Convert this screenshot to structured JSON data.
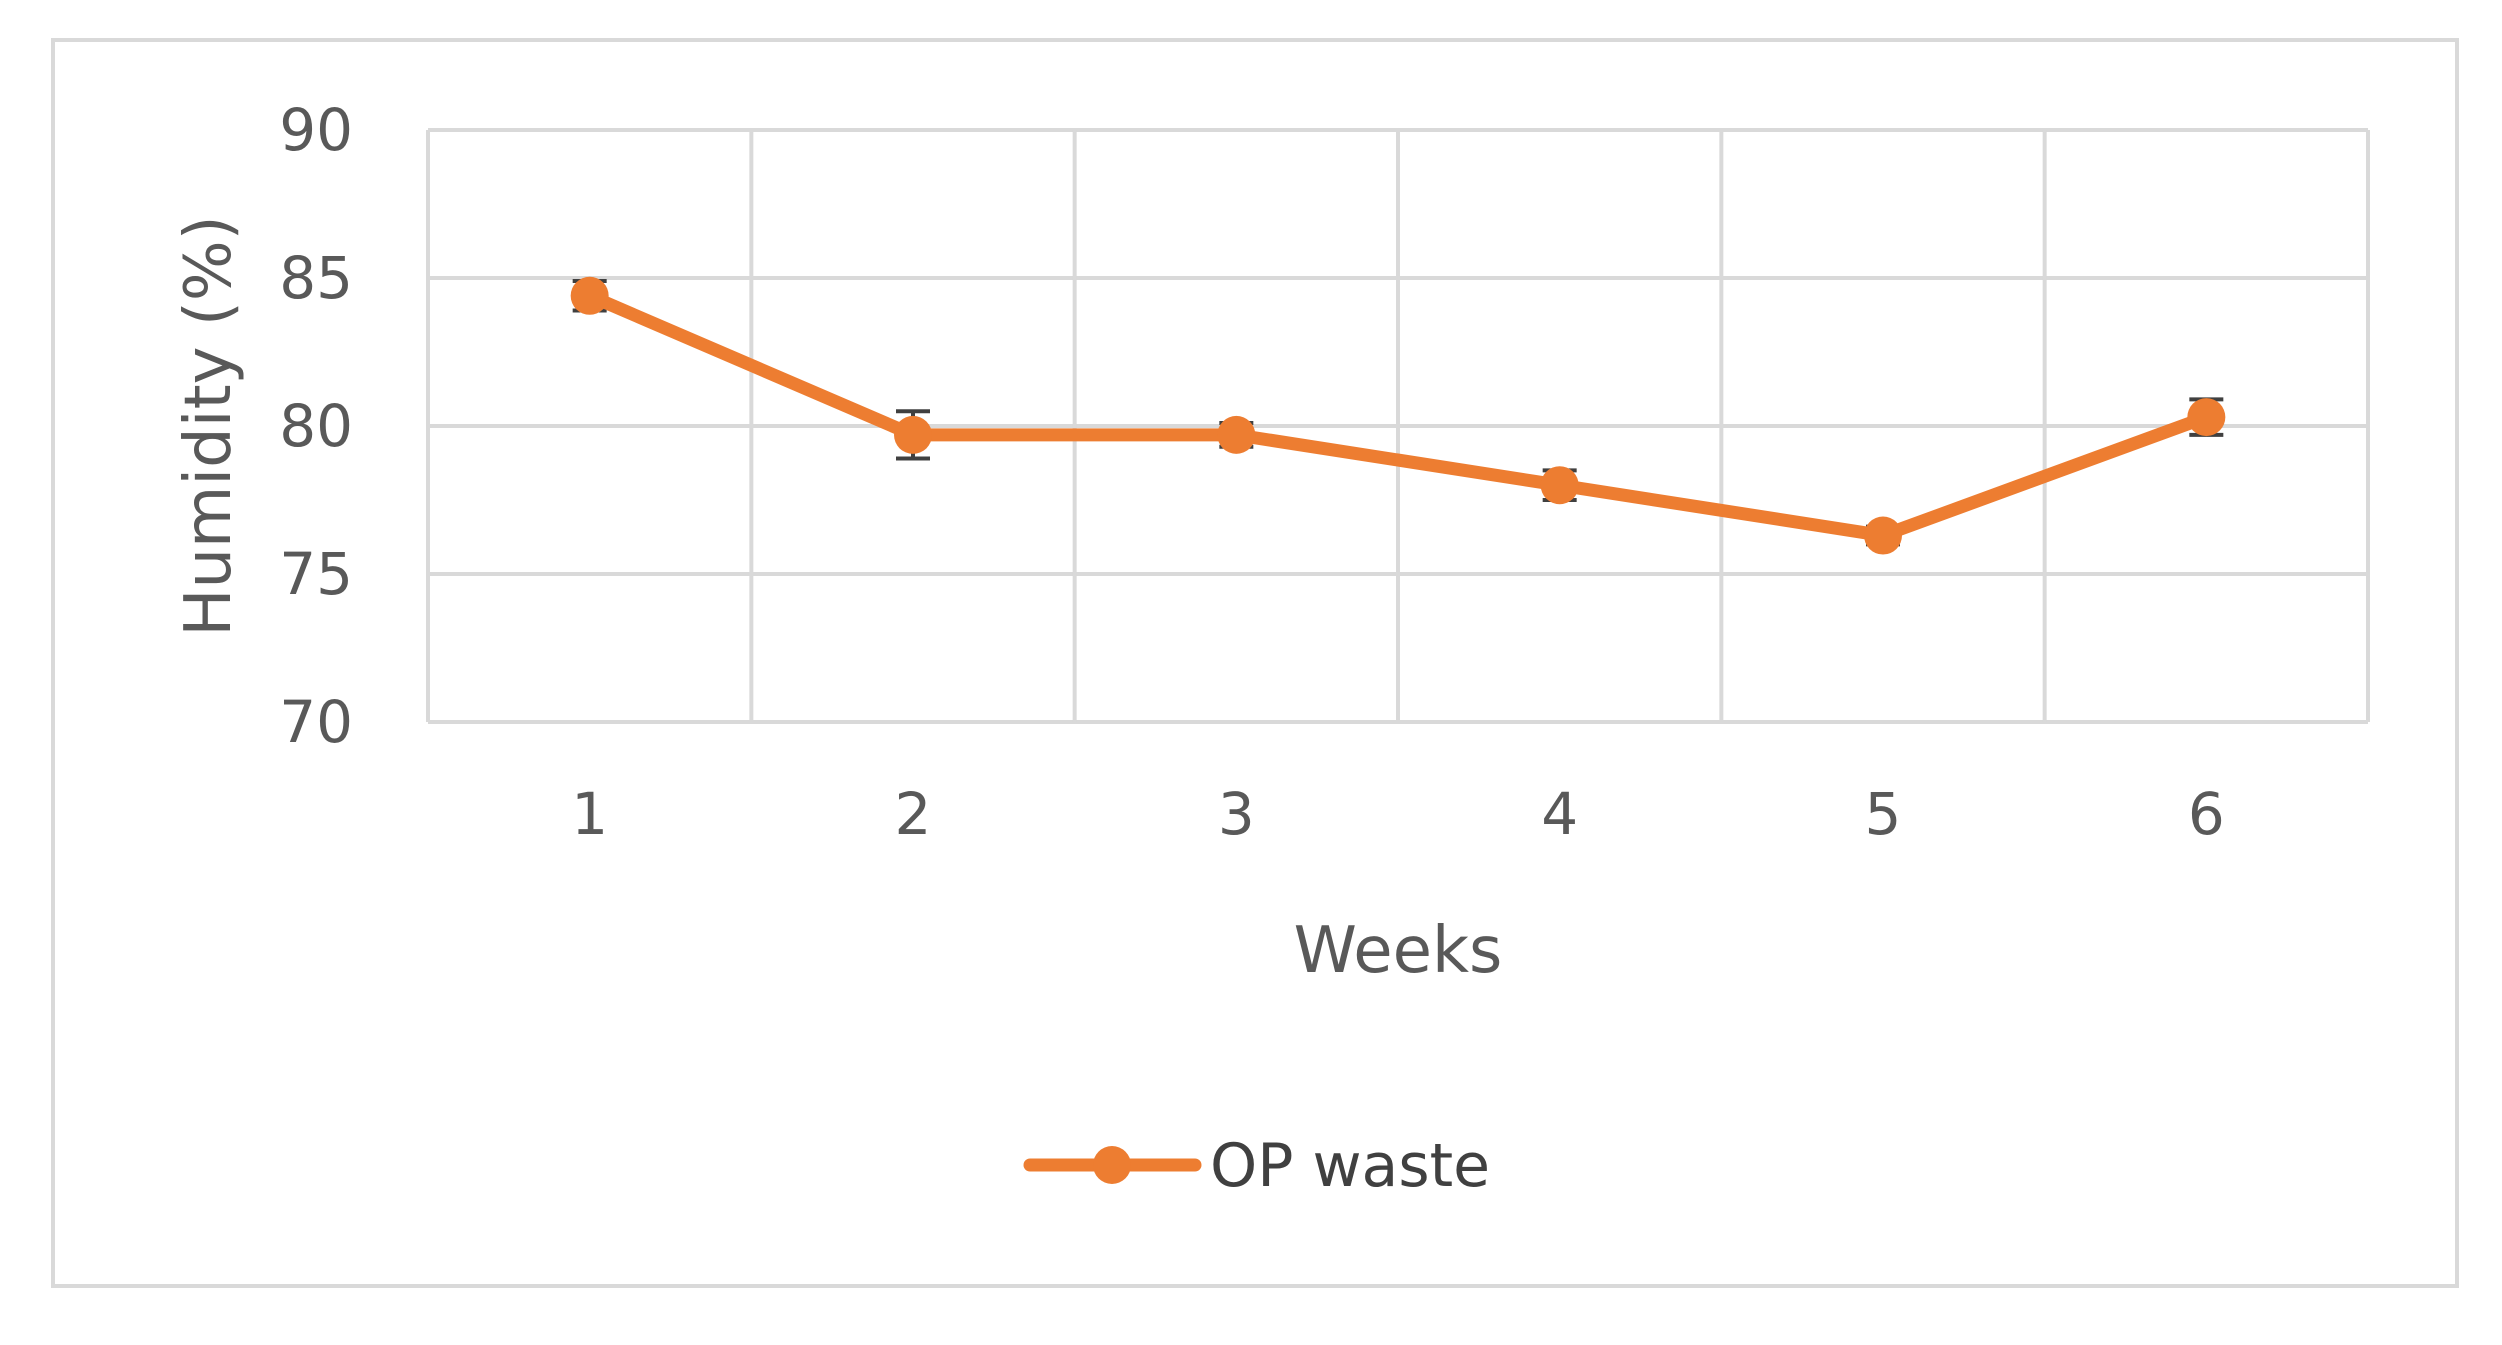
{
  "chart_data": {
    "type": "line",
    "title": "",
    "xlabel": "Weeks",
    "ylabel": "Humidity (%)",
    "categories": [
      "1",
      "2",
      "3",
      "4",
      "5",
      "6"
    ],
    "x": [
      1,
      2,
      3,
      4,
      5,
      6
    ],
    "ylim": [
      70,
      90
    ],
    "yticks": [
      70,
      75,
      80,
      85,
      90
    ],
    "grid": true,
    "legend_position": "bottom",
    "series": [
      {
        "name": "OP waste",
        "color": "#ED7D31",
        "values": [
          84.4,
          79.7,
          79.7,
          78.0,
          76.3,
          80.3
        ],
        "error": [
          0.5,
          0.8,
          0.4,
          0.5,
          0.3,
          0.6
        ]
      }
    ]
  }
}
